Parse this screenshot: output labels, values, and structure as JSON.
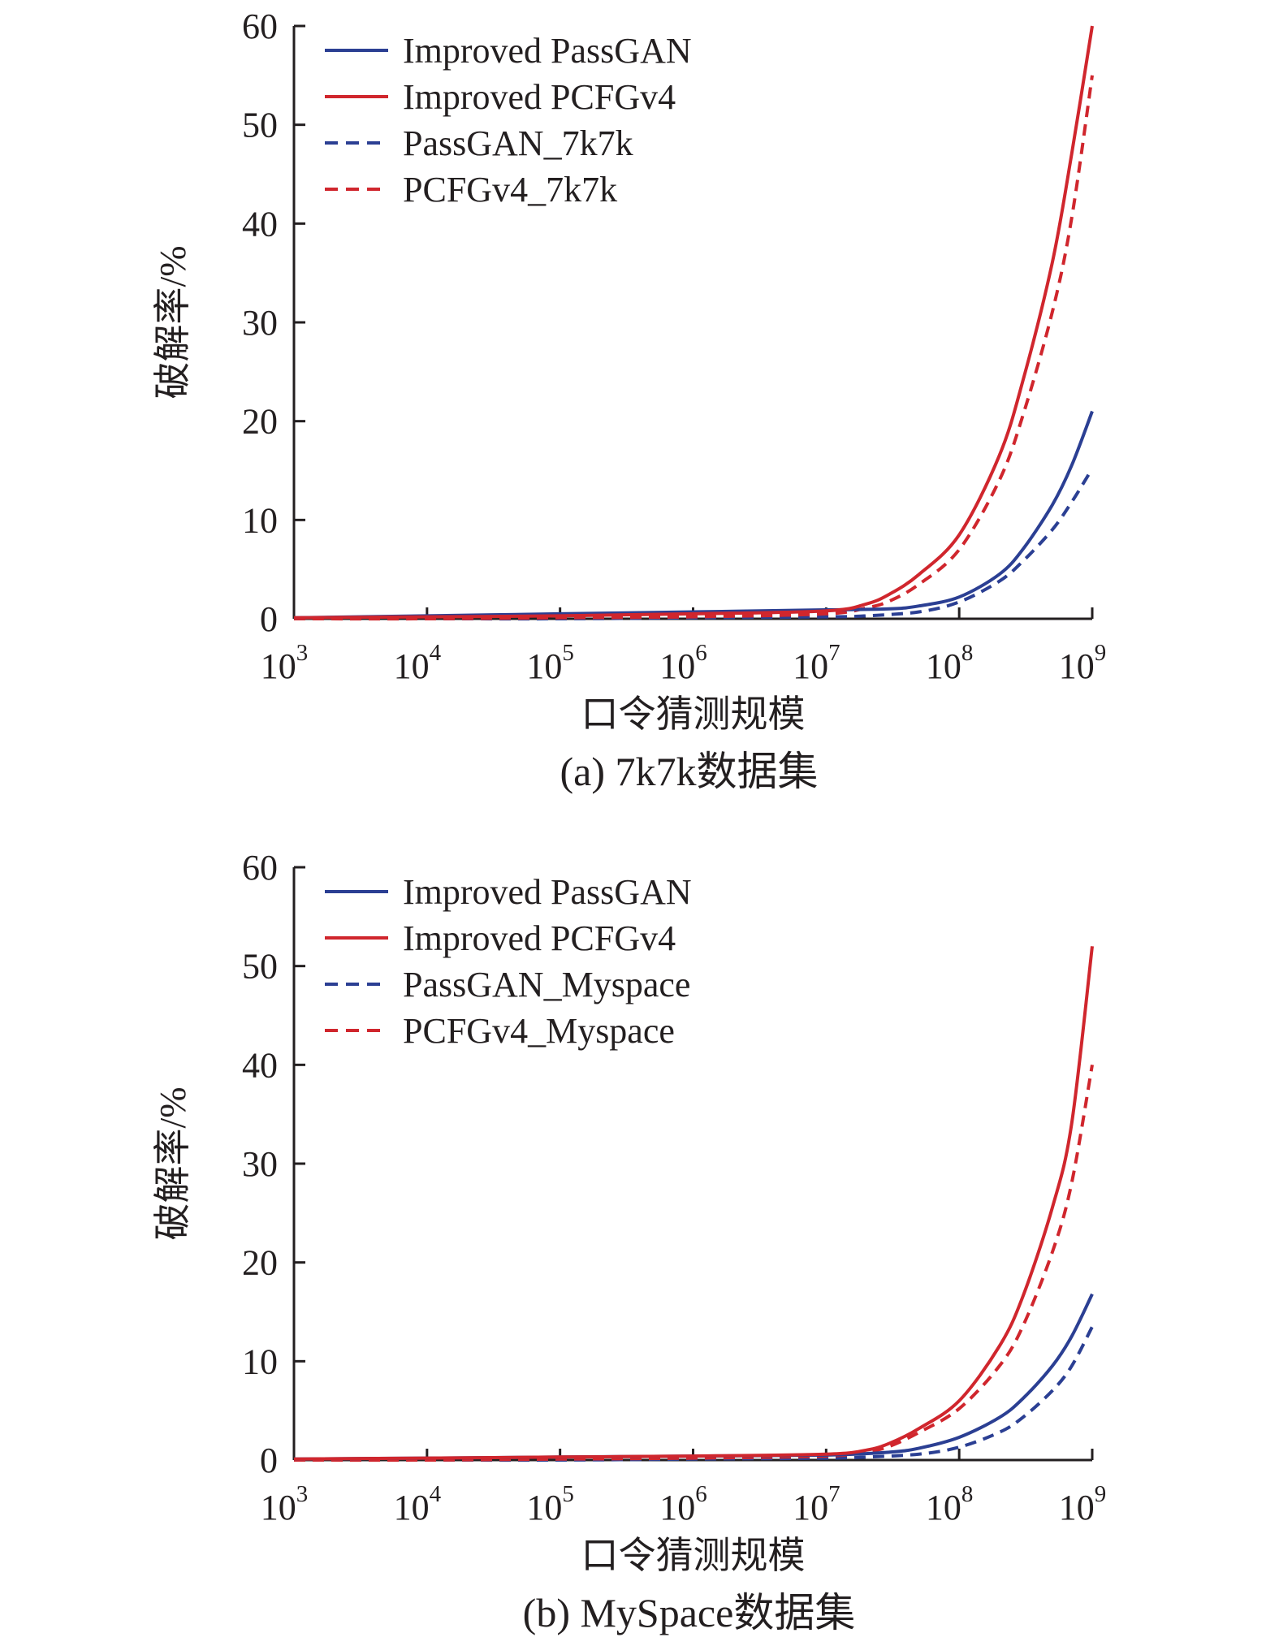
{
  "charts": [
    {
      "caption": "(a) 7k7k数据集",
      "xlabel": "口令猜测规模",
      "ylabel": "破解率/%",
      "y_ticks": [
        "0",
        "10",
        "20",
        "30",
        "40",
        "50",
        "60"
      ],
      "x_ticks": [
        {
          "base": "10",
          "exp": "3"
        },
        {
          "base": "10",
          "exp": "4"
        },
        {
          "base": "10",
          "exp": "5"
        },
        {
          "base": "10",
          "exp": "6"
        },
        {
          "base": "10",
          "exp": "7"
        },
        {
          "base": "10",
          "exp": "8"
        },
        {
          "base": "10",
          "exp": "9"
        }
      ],
      "legend": [
        "Improved PassGAN",
        "Improved PCFGv4",
        "PassGAN_7k7k",
        "PCFGv4_7k7k"
      ]
    },
    {
      "caption": "(b) MySpace数据集",
      "xlabel": "口令猜测规模",
      "ylabel": "破解率/%",
      "y_ticks": [
        "0",
        "10",
        "20",
        "30",
        "40",
        "50",
        "60"
      ],
      "x_ticks": [
        {
          "base": "10",
          "exp": "3"
        },
        {
          "base": "10",
          "exp": "4"
        },
        {
          "base": "10",
          "exp": "5"
        },
        {
          "base": "10",
          "exp": "6"
        },
        {
          "base": "10",
          "exp": "7"
        },
        {
          "base": "10",
          "exp": "8"
        },
        {
          "base": "10",
          "exp": "9"
        }
      ],
      "legend": [
        "Improved PassGAN",
        "Improved PCFGv4",
        "PassGAN_Myspace",
        "PCFGv4_Myspace"
      ]
    }
  ],
  "colors": {
    "blue": "#2b3f93",
    "red": "#d0262d",
    "axis": "#231f20"
  },
  "chart_data": [
    {
      "type": "line",
      "x_scale": "log10",
      "xlim": [
        1000,
        1000000000
      ],
      "ylim": [
        0,
        60
      ],
      "grid": false,
      "legend_position": "top-left",
      "series": [
        {
          "name": "Improved PassGAN",
          "color": "blue",
          "dash": false,
          "x": [
            1000,
            10000,
            100000,
            1000000,
            10000000,
            30000000,
            50000000,
            100000000,
            200000000,
            300000000,
            500000000,
            700000000,
            1000000000
          ],
          "y": [
            0.1,
            0.3,
            0.5,
            0.7,
            0.9,
            1.0,
            1.3,
            2.2,
            4.5,
            7.0,
            11.5,
            15.5,
            21
          ]
        },
        {
          "name": "Improved PCFGv4",
          "color": "red",
          "dash": false,
          "x": [
            1000,
            10000,
            100000,
            1000000,
            10000000,
            20000000,
            30000000,
            50000000,
            100000000,
            200000000,
            300000000,
            500000000,
            700000000,
            1000000000
          ],
          "y": [
            0.1,
            0.2,
            0.3,
            0.5,
            0.8,
            1.5,
            2.5,
            4.5,
            8.5,
            16.5,
            24.0,
            36.0,
            47.0,
            60.0
          ]
        },
        {
          "name": "PassGAN_7k7k",
          "color": "blue",
          "dash": true,
          "x": [
            1000,
            10000,
            100000,
            1000000,
            10000000,
            20000000,
            50000000,
            100000000,
            200000000,
            300000000,
            500000000,
            700000000,
            1000000000
          ],
          "y": [
            0.0,
            0.0,
            0.0,
            0.1,
            0.2,
            0.3,
            0.7,
            1.7,
            3.8,
            5.8,
            9.0,
            11.8,
            15.2
          ]
        },
        {
          "name": "PCFGv4_7k7k",
          "color": "red",
          "dash": true,
          "x": [
            1000,
            10000,
            100000,
            1000000,
            10000000,
            20000000,
            30000000,
            50000000,
            100000000,
            200000000,
            300000000,
            500000000,
            700000000,
            1000000000
          ],
          "y": [
            0.0,
            0.0,
            0.1,
            0.2,
            0.5,
            1.1,
            1.8,
            3.5,
            7.0,
            14.0,
            20.5,
            31.0,
            40.5,
            55.0
          ]
        }
      ]
    },
    {
      "type": "line",
      "x_scale": "log10",
      "xlim": [
        1000,
        1000000000
      ],
      "ylim": [
        0,
        60
      ],
      "grid": false,
      "legend_position": "top-left",
      "series": [
        {
          "name": "Improved PassGAN",
          "color": "blue",
          "dash": false,
          "x": [
            1000,
            10000,
            100000,
            1000000,
            10000000,
            30000000,
            50000000,
            100000000,
            200000000,
            300000000,
            500000000,
            700000000,
            1000000000
          ],
          "y": [
            0.1,
            0.2,
            0.3,
            0.4,
            0.5,
            0.8,
            1.2,
            2.3,
            4.3,
            6.2,
            9.5,
            12.5,
            16.8
          ]
        },
        {
          "name": "Improved PCFGv4",
          "color": "red",
          "dash": false,
          "x": [
            1000,
            10000,
            100000,
            1000000,
            10000000,
            20000000,
            30000000,
            50000000,
            100000000,
            200000000,
            300000000,
            500000000,
            700000000,
            1000000000
          ],
          "y": [
            0.1,
            0.2,
            0.3,
            0.4,
            0.6,
            1.0,
            1.7,
            3.2,
            6.0,
            11.5,
            16.5,
            25.5,
            34.0,
            52.0
          ]
        },
        {
          "name": "PassGAN_Myspace",
          "color": "blue",
          "dash": true,
          "x": [
            1000,
            10000,
            100000,
            1000000,
            10000000,
            20000000,
            50000000,
            100000000,
            200000000,
            300000000,
            500000000,
            700000000,
            1000000000
          ],
          "y": [
            0.0,
            0.0,
            0.0,
            0.1,
            0.2,
            0.3,
            0.6,
            1.3,
            2.8,
            4.3,
            7.0,
            9.5,
            13.5
          ]
        },
        {
          "name": "PCFGv4_Myspace",
          "color": "red",
          "dash": true,
          "x": [
            1000,
            10000,
            100000,
            1000000,
            10000000,
            20000000,
            30000000,
            50000000,
            100000000,
            200000000,
            300000000,
            500000000,
            700000000,
            1000000000
          ],
          "y": [
            0.0,
            0.0,
            0.1,
            0.2,
            0.4,
            0.8,
            1.4,
            2.8,
            5.2,
            9.5,
            13.5,
            21.0,
            28.0,
            40.0
          ]
        }
      ]
    }
  ]
}
